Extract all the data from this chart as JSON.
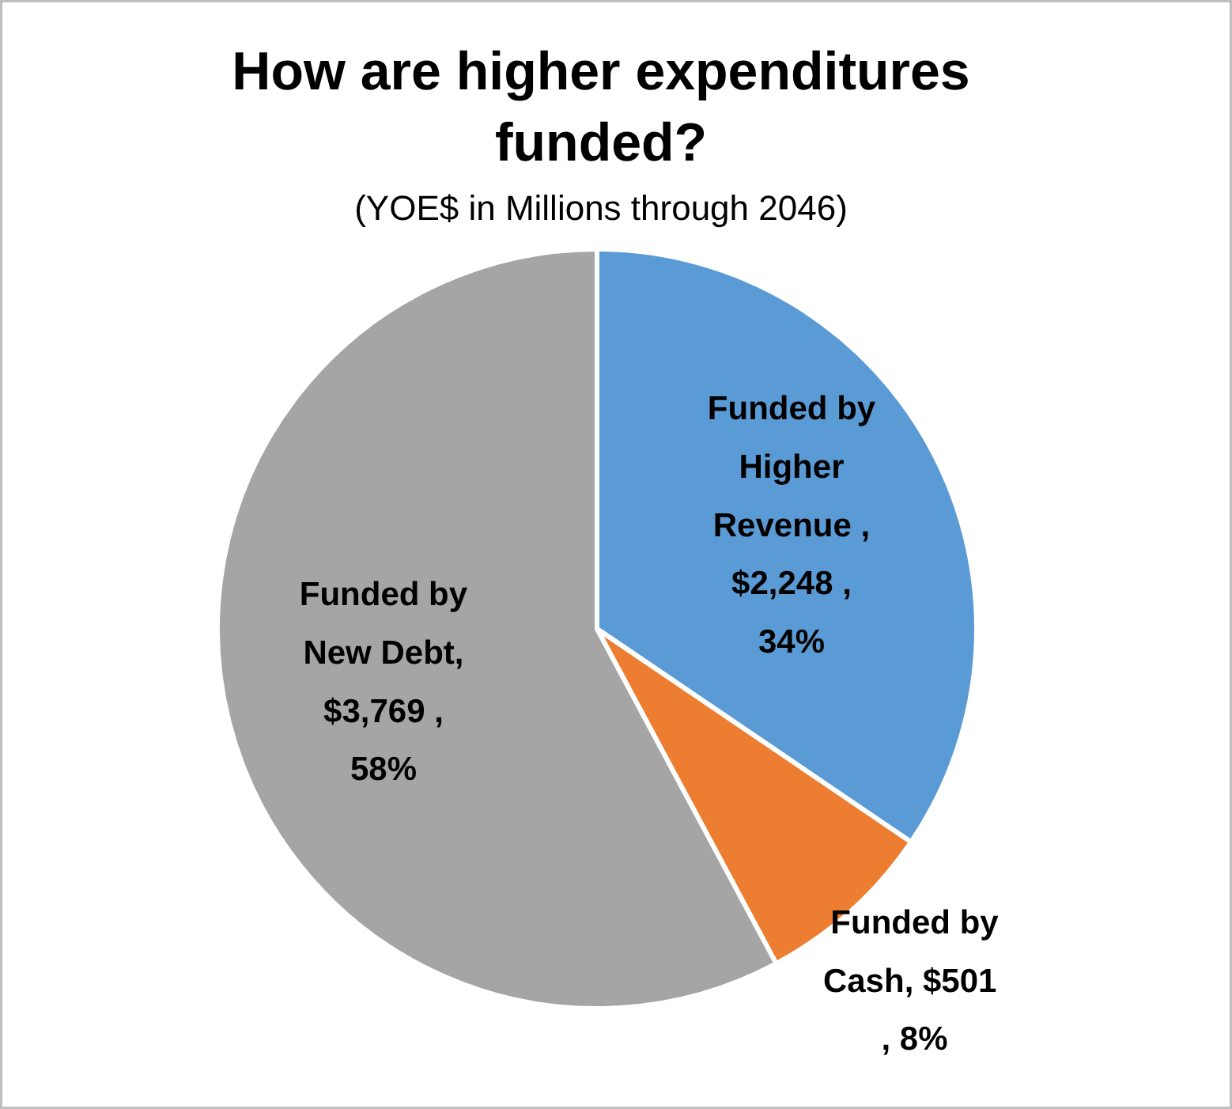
{
  "chart_data": {
    "type": "pie",
    "title": "How are higher expenditures funded?",
    "subtitle": "(YOE$ in Millions through 2046)",
    "categories": [
      "Funded by Higher Revenue",
      "Funded by Cash",
      "Funded by New Debt"
    ],
    "values": [
      2248,
      501,
      3769
    ],
    "colors": [
      "#5b9bd5",
      "#ed7d31",
      "#a5a5a5"
    ],
    "value_labels": [
      " , $2,248 , 34%",
      ",  $501 , 8%",
      ", $3,769 , 58%"
    ]
  }
}
